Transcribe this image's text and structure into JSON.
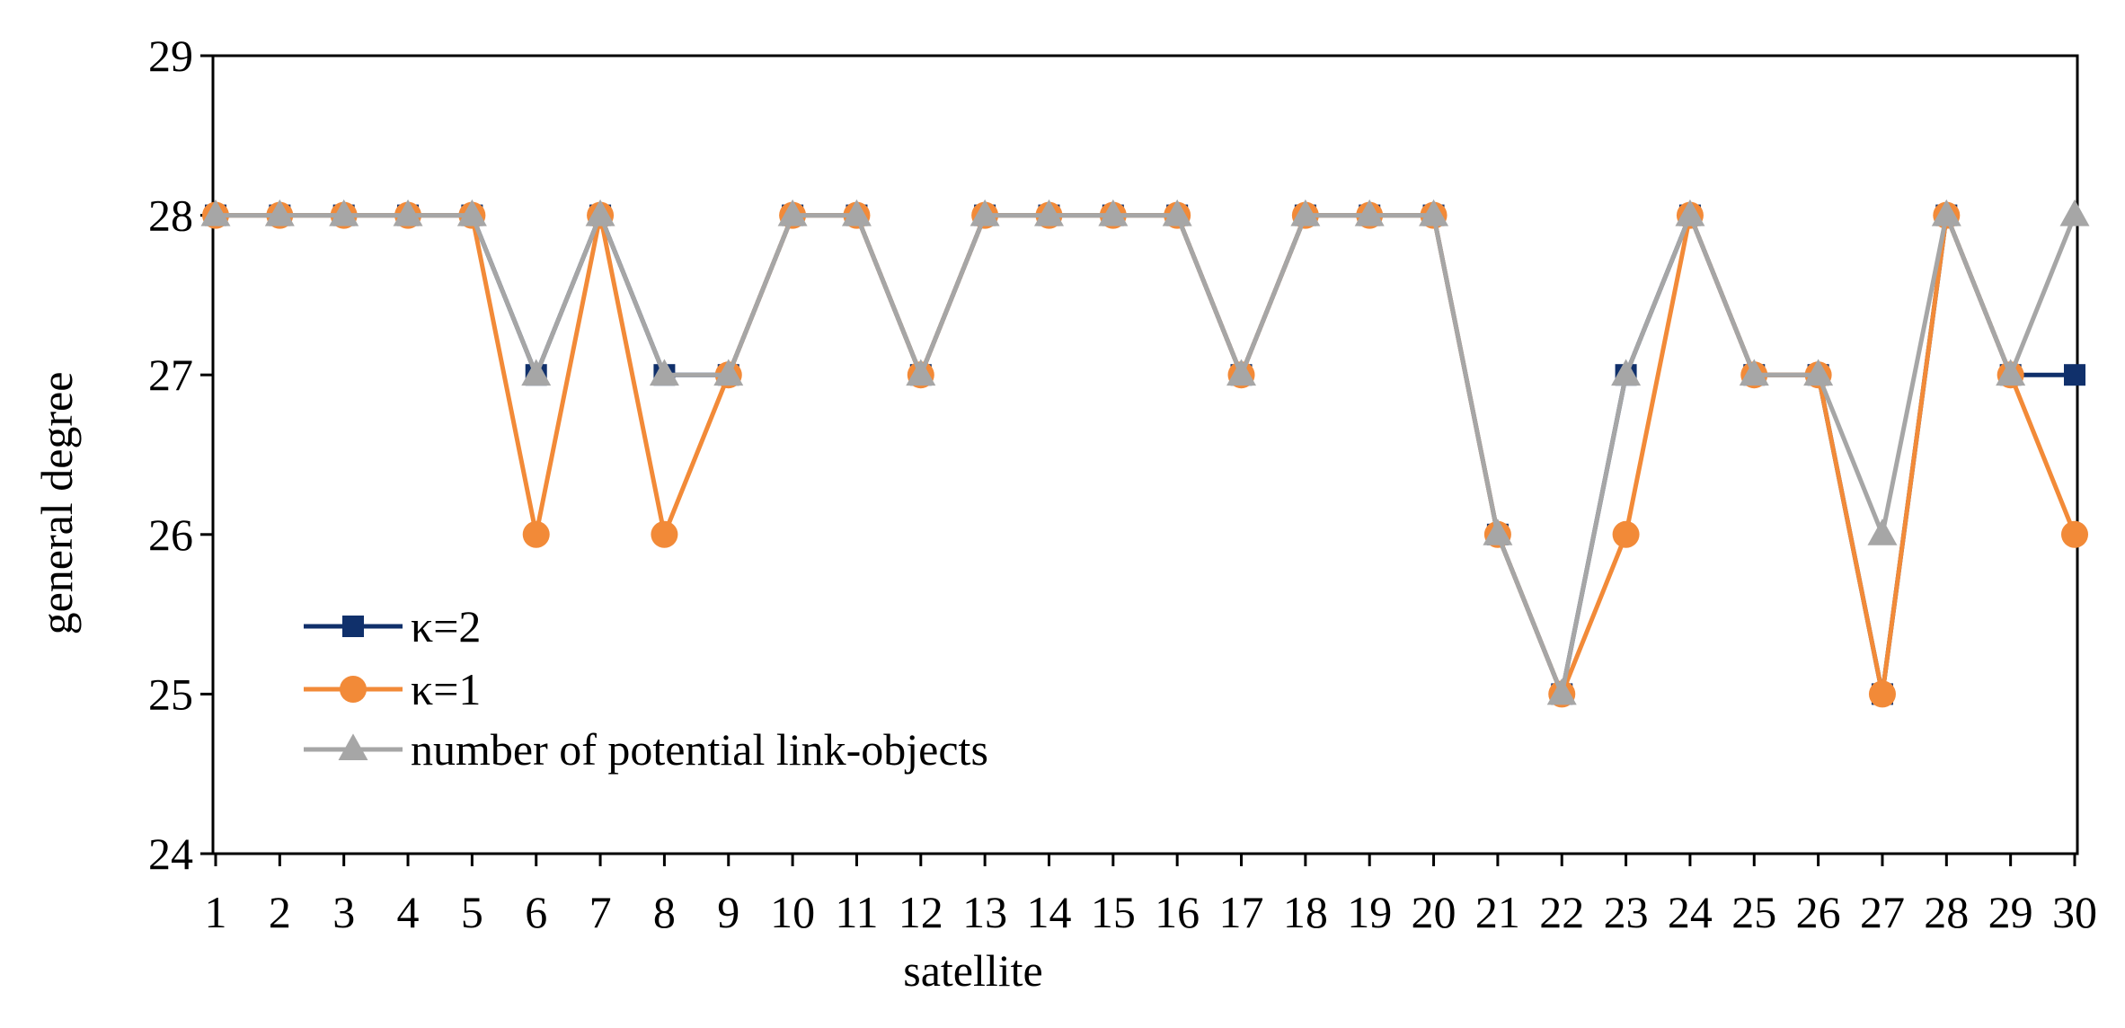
{
  "chart_data": {
    "type": "line",
    "xlabel": "satellite",
    "ylabel": "general degree",
    "ylim": [
      24,
      29
    ],
    "yticks": [
      24,
      25,
      26,
      27,
      28,
      29
    ],
    "categories": [
      "1",
      "2",
      "3",
      "4",
      "5",
      "6",
      "7",
      "8",
      "9",
      "10",
      "11",
      "12",
      "13",
      "14",
      "15",
      "16",
      "17",
      "18",
      "19",
      "20",
      "21",
      "22",
      "23",
      "24",
      "25",
      "26",
      "27",
      "28",
      "29",
      "30"
    ],
    "grid": false,
    "legend_position": "lower-left",
    "series": [
      {
        "name": "κ=2",
        "color": "#10306b",
        "marker": "square",
        "values": [
          28,
          28,
          28,
          28,
          28,
          27,
          28,
          27,
          27,
          28,
          28,
          27,
          28,
          28,
          28,
          28,
          27,
          28,
          28,
          28,
          26,
          25,
          27,
          28,
          27,
          27,
          25,
          28,
          27,
          27
        ]
      },
      {
        "name": "κ=1",
        "color": "#f28a38",
        "marker": "circle",
        "values": [
          28,
          28,
          28,
          28,
          28,
          26,
          28,
          26,
          27,
          28,
          28,
          27,
          28,
          28,
          28,
          28,
          27,
          28,
          28,
          28,
          26,
          25,
          26,
          28,
          27,
          27,
          25,
          28,
          27,
          26
        ]
      },
      {
        "name": "number of potential link-objects",
        "color": "#a6a6a6",
        "marker": "triangle",
        "values": [
          28,
          28,
          28,
          28,
          28,
          27,
          28,
          27,
          27,
          28,
          28,
          27,
          28,
          28,
          28,
          28,
          27,
          28,
          28,
          28,
          26,
          25,
          27,
          28,
          27,
          27,
          26,
          28,
          27,
          28
        ]
      }
    ]
  }
}
